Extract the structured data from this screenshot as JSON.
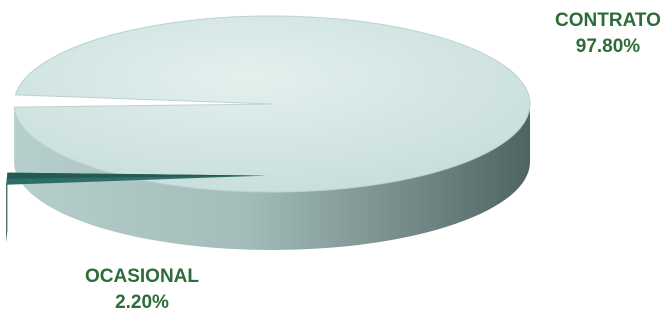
{
  "chart_data": {
    "type": "pie",
    "style": "3d",
    "title": "",
    "slices": [
      {
        "label": "CONTRATO",
        "percent_text": "97.80%",
        "value": 97.8,
        "color": "#cde5e2"
      },
      {
        "label": "OCASIONAL",
        "percent_text": "2.20%",
        "value": 2.2,
        "color": "#2e6e69"
      }
    ],
    "label_color": "#2e6b3a"
  }
}
